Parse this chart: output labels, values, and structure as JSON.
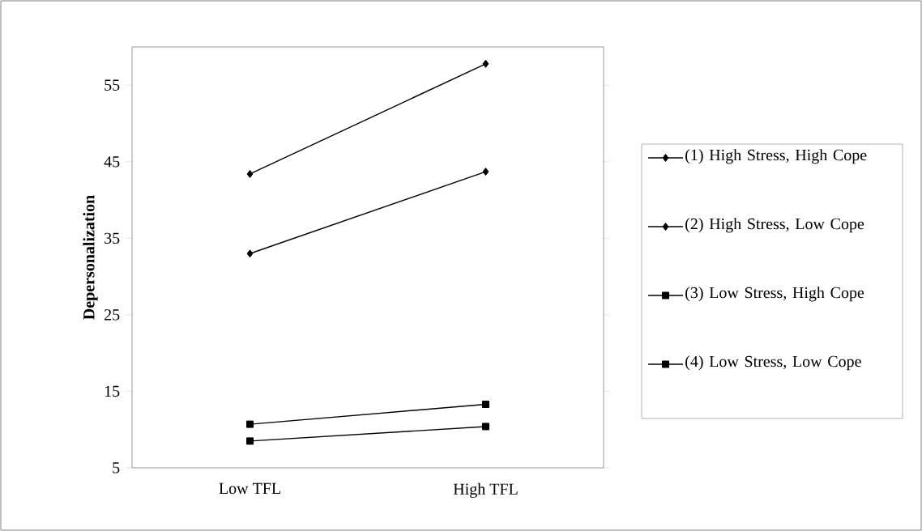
{
  "chart_data": {
    "type": "line",
    "ylabel": "Depersonalization",
    "categories": [
      "Low TFL",
      "High TFL"
    ],
    "series": [
      {
        "name": "(1) High Stress, High Cope",
        "color": "#000000",
        "marker": "diamond",
        "values": [
          43.4,
          57.8
        ]
      },
      {
        "name": "(2) High Stress, Low Cope",
        "color": "#000000",
        "marker": "diamond",
        "values": [
          33.0,
          43.7
        ]
      },
      {
        "name": "(3) Low Stress, High Cope",
        "color": "#000000",
        "marker": "square",
        "values": [
          10.7,
          13.3
        ]
      },
      {
        "name": "(4) Low Stress, Low Cope",
        "color": "#000000",
        "marker": "square",
        "values": [
          8.5,
          10.4
        ]
      }
    ],
    "ylim": [
      5,
      60
    ],
    "yticks": [
      5,
      15,
      25,
      35,
      45,
      55
    ],
    "grid": false,
    "legend": "right",
    "line_style": "solid"
  }
}
